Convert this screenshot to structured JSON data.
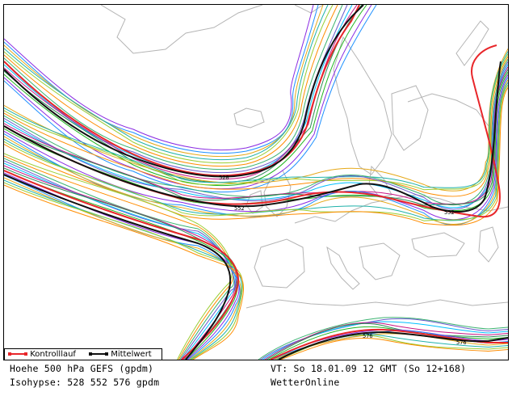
{
  "legend": {
    "control_label": "Kontrolllauf",
    "mean_label": "Mittelwert",
    "control_color": "#e8262a",
    "mean_color": "#111111"
  },
  "caption": {
    "left_line1": "Hoehe 500 hPa GEFS (gpdm)",
    "left_line2": "Isohypse: 528 552 576 gpdm",
    "right_line1": "VT: So 18.01.09 12 GMT (So 12+168)",
    "right_line2": "WetterOnline"
  },
  "contour_labels": [
    "528",
    "552",
    "552",
    "576",
    "576"
  ],
  "map_style": {
    "land_outline_color": "#b4b4b4",
    "background": "#ffffff",
    "ensemble_colors": [
      "#22b522",
      "#8a2be2",
      "#1e90ff",
      "#e6a817",
      "#20b2aa",
      "#9acd32",
      "#ff8c00",
      "#3cb371",
      "#6a5acd",
      "#00bfff",
      "#c71585",
      "#2e8b57"
    ]
  }
}
